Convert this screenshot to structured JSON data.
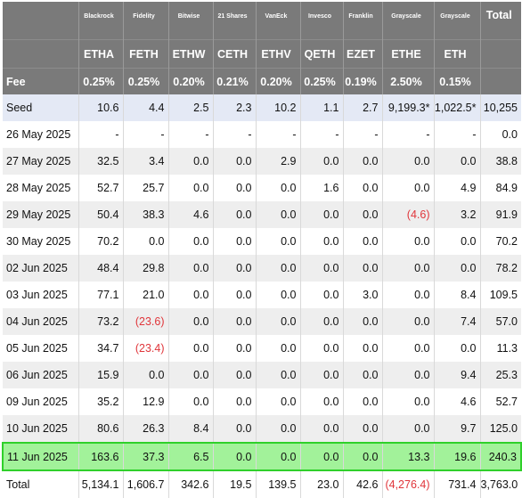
{
  "issuers": [
    "Blackrock",
    "Fidelity",
    "Bitwise",
    "21 Shares",
    "VanEck",
    "Invesco",
    "Franklin",
    "Grayscale",
    "Grayscale"
  ],
  "total_label": "Total",
  "fee_label": "Fee",
  "tickers": [
    "ETHA",
    "FETH",
    "ETHW",
    "CETH",
    "ETHV",
    "QETH",
    "EZET",
    "ETHE",
    "ETH"
  ],
  "fees": [
    "0.25%",
    "0.25%",
    "0.20%",
    "0.21%",
    "0.20%",
    "0.25%",
    "0.19%",
    "2.50%",
    "0.15%"
  ],
  "rows": [
    {
      "label": "Seed",
      "values": [
        "10.6",
        "4.4",
        "2.5",
        "2.3",
        "10.2",
        "1.1",
        "2.7",
        "9,199.3*",
        "1,022.5*",
        "10,255"
      ]
    },
    {
      "label": "26 May 2025",
      "values": [
        "-",
        "-",
        "-",
        "-",
        "-",
        "-",
        "-",
        "-",
        "-",
        "0.0"
      ]
    },
    {
      "label": "27 May 2025",
      "values": [
        "32.5",
        "3.4",
        "0.0",
        "0.0",
        "2.9",
        "0.0",
        "0.0",
        "0.0",
        "0.0",
        "38.8"
      ]
    },
    {
      "label": "28 May 2025",
      "values": [
        "52.7",
        "25.7",
        "0.0",
        "0.0",
        "0.0",
        "1.6",
        "0.0",
        "0.0",
        "4.9",
        "84.9"
      ]
    },
    {
      "label": "29 May 2025",
      "values": [
        "50.4",
        "38.3",
        "4.6",
        "0.0",
        "0.0",
        "0.0",
        "0.0",
        "(4.6)",
        "3.2",
        "91.9"
      ]
    },
    {
      "label": "30 May 2025",
      "values": [
        "70.2",
        "0.0",
        "0.0",
        "0.0",
        "0.0",
        "0.0",
        "0.0",
        "0.0",
        "0.0",
        "70.2"
      ]
    },
    {
      "label": "02 Jun 2025",
      "values": [
        "48.4",
        "29.8",
        "0.0",
        "0.0",
        "0.0",
        "0.0",
        "0.0",
        "0.0",
        "0.0",
        "78.2"
      ]
    },
    {
      "label": "03 Jun 2025",
      "values": [
        "77.1",
        "21.0",
        "0.0",
        "0.0",
        "0.0",
        "0.0",
        "3.0",
        "0.0",
        "8.4",
        "109.5"
      ]
    },
    {
      "label": "04 Jun 2025",
      "values": [
        "73.2",
        "(23.6)",
        "0.0",
        "0.0",
        "0.0",
        "0.0",
        "0.0",
        "0.0",
        "7.4",
        "57.0"
      ]
    },
    {
      "label": "05 Jun 2025",
      "values": [
        "34.7",
        "(23.4)",
        "0.0",
        "0.0",
        "0.0",
        "0.0",
        "0.0",
        "0.0",
        "0.0",
        "11.3"
      ]
    },
    {
      "label": "06 Jun 2025",
      "values": [
        "15.9",
        "0.0",
        "0.0",
        "0.0",
        "0.0",
        "0.0",
        "0.0",
        "0.0",
        "9.4",
        "25.3"
      ]
    },
    {
      "label": "09 Jun 2025",
      "values": [
        "35.2",
        "12.9",
        "0.0",
        "0.0",
        "0.0",
        "0.0",
        "0.0",
        "0.0",
        "4.6",
        "52.7"
      ]
    },
    {
      "label": "10 Jun 2025",
      "values": [
        "80.6",
        "26.3",
        "8.4",
        "0.0",
        "0.0",
        "0.0",
        "0.0",
        "0.0",
        "9.7",
        "125.0"
      ]
    },
    {
      "label": "11 Jun 2025",
      "values": [
        "163.6",
        "37.3",
        "6.5",
        "0.0",
        "0.0",
        "0.0",
        "0.0",
        "13.3",
        "19.6",
        "240.3"
      ]
    }
  ],
  "total_row": {
    "label": "Total",
    "values": [
      "5,134.1",
      "1,606.7",
      "342.6",
      "19.5",
      "139.5",
      "23.0",
      "42.6",
      "(4,276.4)",
      "731.4",
      "3,763.0"
    ]
  },
  "colors": {
    "header_bg": "#7a7a7a",
    "seed_bg": "#e4e9f5",
    "stripe_bg": "#eeeeee",
    "highlight_bg": "#a2f29a",
    "highlight_border": "#2fd02a",
    "negative": "#e0363b"
  }
}
